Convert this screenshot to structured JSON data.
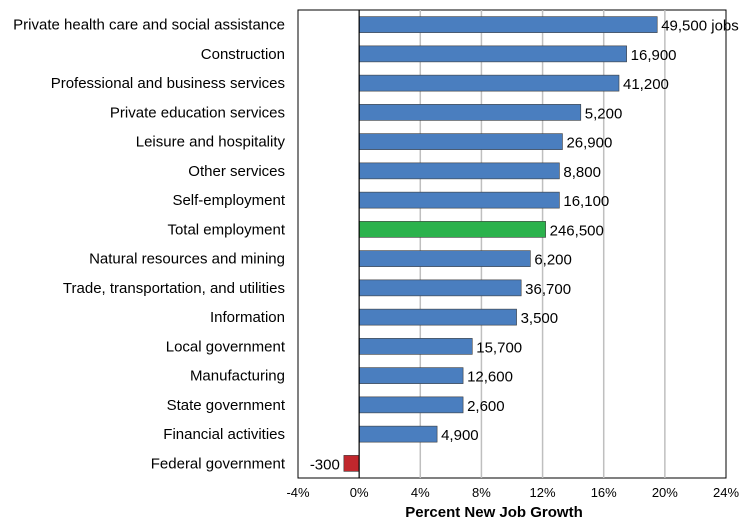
{
  "chart_data": {
    "type": "bar",
    "orientation": "horizontal",
    "title": "",
    "xlabel": "Percent New Job Growth",
    "ylabel": "",
    "xlim": [
      -4,
      24
    ],
    "xticks": [
      -4,
      0,
      4,
      8,
      12,
      16,
      20,
      24
    ],
    "tick_suffix": "%",
    "grid": "vertical",
    "categories": [
      "Private health care and social assistance",
      "Construction",
      "Professional and business services",
      "Private education services",
      "Leisure and hospitality",
      "Other services",
      "Self-employment",
      "Total employment",
      "Natural resources and mining",
      "Trade, transportation, and utilities",
      "Information",
      "Local government",
      "Manufacturing",
      "State government",
      "Financial activities",
      "Federal government"
    ],
    "values": [
      19.5,
      17.5,
      17.0,
      14.5,
      13.3,
      13.1,
      13.1,
      12.2,
      11.2,
      10.6,
      10.3,
      7.4,
      6.8,
      6.8,
      5.1,
      -1.0
    ],
    "data_labels": [
      "49,500 jobs",
      "16,900",
      "41,200",
      "5,200",
      "26,900",
      "8,800",
      "16,100",
      "246,500",
      "6,200",
      "36,700",
      "3,500",
      "15,700",
      "12,600",
      "2,600",
      "4,900",
      "-300"
    ],
    "colors": {
      "default": "#4a7ebf",
      "highlight": "#2bb24c",
      "negative": "#c1272d",
      "gridline": "#bfbfbf",
      "axis": "#000000"
    },
    "highlight_category": "Total employment"
  }
}
